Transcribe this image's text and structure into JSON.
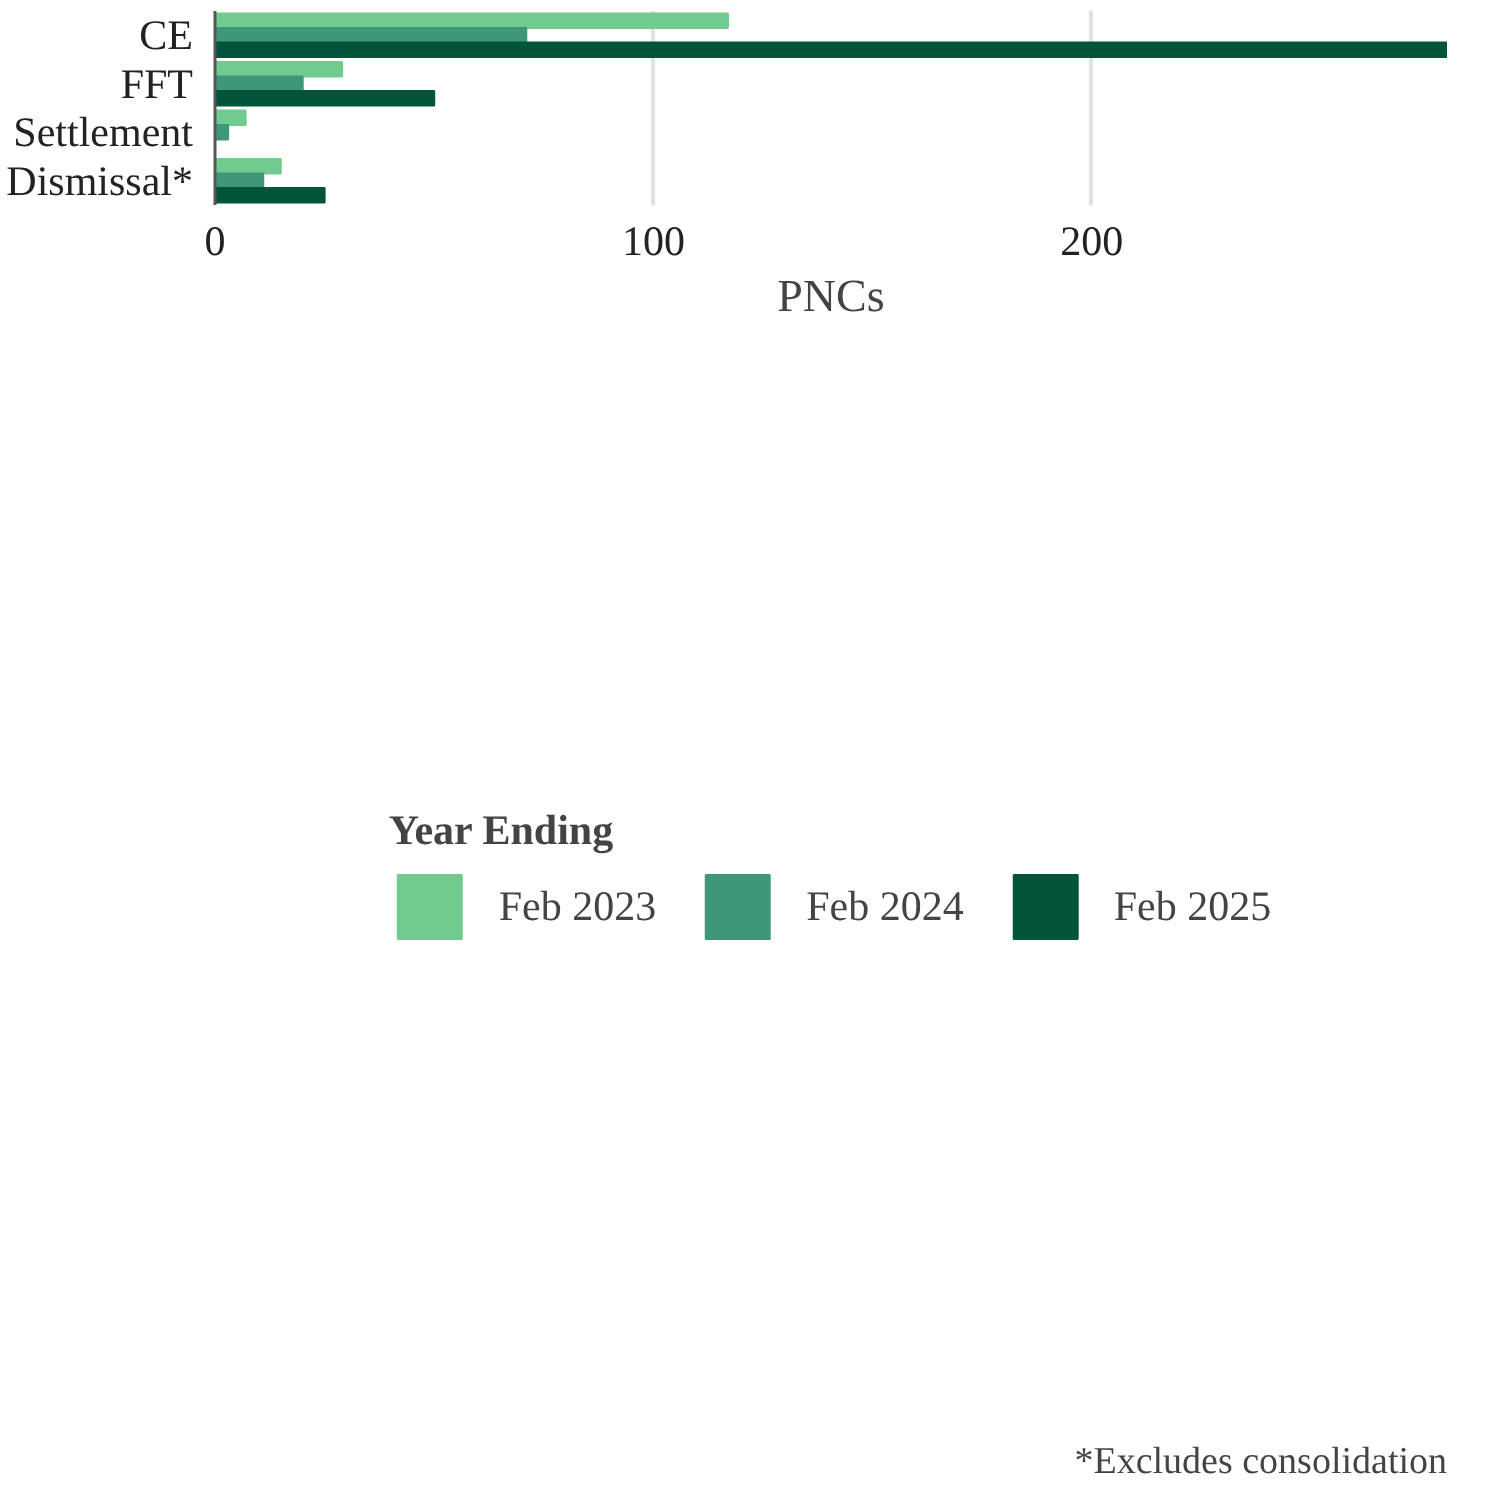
{
  "chart_data": {
    "type": "bar",
    "orientation": "horizontal",
    "xlabel": "PNCs",
    "legend_title": "Year Ending",
    "categories": [
      "CE",
      "FFT",
      "Settlement",
      "Dismissal*"
    ],
    "series": [
      {
        "name": "Feb 2023",
        "color": "#72cb8e",
        "values": [
          117,
          29,
          7,
          15
        ]
      },
      {
        "name": "Feb 2024",
        "color": "#3d977b",
        "values": [
          71,
          20,
          3,
          11
        ]
      },
      {
        "name": "Feb 2025",
        "color": "#02553a",
        "values": [
          281,
          50,
          null,
          25
        ]
      }
    ],
    "xlim": [
      0,
      281
    ],
    "xticks": [
      0,
      100,
      200
    ],
    "grid": "x",
    "legend": "bottom",
    "annotations": [
      "*Excludes consolidation"
    ]
  }
}
